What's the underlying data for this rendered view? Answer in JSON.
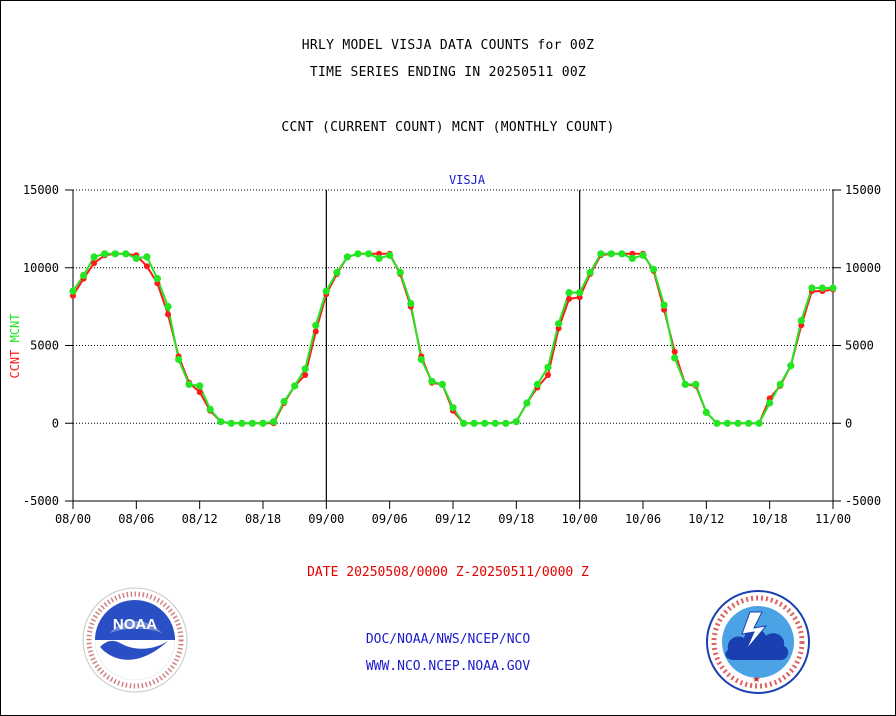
{
  "header": {
    "line1": "HRLY MODEL VISJA DATA COUNTS for 00Z",
    "line2": "TIME SERIES ENDING IN 20250511 00Z",
    "line3": "CCNT (CURRENT COUNT) MCNT (MONTHLY COUNT)"
  },
  "colors": {
    "ccnt": "#ff1a1a",
    "mcnt": "#22e622",
    "title_blue": "#1a1acc",
    "date_red": "#e60000"
  },
  "chart_data": {
    "type": "line",
    "title": "VISJA",
    "xlabel": "",
    "ylabel_parts": [
      "CCNT",
      "MCNT"
    ],
    "ylim": [
      -5000,
      15000
    ],
    "yticks": [
      -5000,
      0,
      5000,
      10000,
      15000
    ],
    "ytick_labels": [
      "-5000",
      "0",
      "5000",
      "10000",
      "15000"
    ],
    "xlim": [
      0,
      72
    ],
    "xticks": [
      0,
      6,
      12,
      18,
      24,
      30,
      36,
      42,
      48,
      54,
      60,
      66,
      72
    ],
    "xtick_labels": [
      "08/00",
      "08/06",
      "08/12",
      "08/18",
      "09/00",
      "09/06",
      "09/12",
      "09/18",
      "10/00",
      "10/06",
      "10/12",
      "10/18",
      "11/00"
    ],
    "day_dividers": [
      24,
      48
    ],
    "grid": "horizontal-dotted",
    "series": [
      {
        "name": "CCNT",
        "color": "#ff1a1a",
        "x": [
          0,
          1,
          2,
          3,
          4,
          5,
          6,
          7,
          8,
          9,
          10,
          11,
          12,
          13,
          14,
          15,
          16,
          17,
          18,
          19,
          20,
          21,
          22,
          23,
          24,
          25,
          26,
          27,
          28,
          29,
          30,
          31,
          32,
          33,
          34,
          35,
          36,
          37,
          38,
          39,
          40,
          41,
          42,
          43,
          44,
          45,
          46,
          47,
          48,
          49,
          50,
          51,
          52,
          53,
          54,
          55,
          56,
          57,
          58,
          59,
          60,
          61,
          62,
          63,
          64,
          65,
          66,
          67,
          68,
          69,
          70,
          71,
          72
        ],
        "values": [
          8200,
          9300,
          10300,
          10800,
          10900,
          10900,
          10800,
          10100,
          9000,
          7000,
          4300,
          2600,
          2000,
          800,
          100,
          0,
          0,
          0,
          0,
          0,
          1300,
          2400,
          3100,
          5900,
          8300,
          9600,
          10700,
          10900,
          10900,
          10900,
          10900,
          9600,
          7500,
          4300,
          2600,
          2500,
          800,
          0,
          0,
          0,
          0,
          0,
          100,
          1300,
          2300,
          3100,
          6100,
          8000,
          8100,
          9600,
          10800,
          10900,
          10900,
          10900,
          10900,
          9800,
          7300,
          4600,
          2500,
          2400,
          700,
          0,
          0,
          0,
          0,
          0,
          1600,
          2400,
          3700,
          6300,
          8500,
          8500,
          8600
        ]
      },
      {
        "name": "MCNT",
        "color": "#22e622",
        "x": [
          0,
          1,
          2,
          3,
          4,
          5,
          6,
          7,
          8,
          9,
          10,
          11,
          12,
          13,
          14,
          15,
          16,
          17,
          18,
          19,
          20,
          21,
          22,
          23,
          24,
          25,
          26,
          27,
          28,
          29,
          30,
          31,
          32,
          33,
          34,
          35,
          36,
          37,
          38,
          39,
          40,
          41,
          42,
          43,
          44,
          45,
          46,
          47,
          48,
          49,
          50,
          51,
          52,
          53,
          54,
          55,
          56,
          57,
          58,
          59,
          60,
          61,
          62,
          63,
          64,
          65,
          66,
          67,
          68,
          69,
          70,
          71,
          72
        ],
        "values": [
          8500,
          9500,
          10700,
          10900,
          10900,
          10900,
          10600,
          10700,
          9300,
          7500,
          4100,
          2500,
          2400,
          900,
          100,
          0,
          0,
          0,
          0,
          100,
          1400,
          2400,
          3500,
          6300,
          8500,
          9700,
          10700,
          10900,
          10900,
          10600,
          10800,
          9700,
          7700,
          4100,
          2700,
          2500,
          1000,
          0,
          0,
          0,
          0,
          0,
          100,
          1300,
          2500,
          3600,
          6400,
          8400,
          8400,
          9700,
          10900,
          10900,
          10900,
          10600,
          10800,
          9900,
          7600,
          4200,
          2500,
          2500,
          700,
          0,
          0,
          0,
          0,
          0,
          1300,
          2500,
          3700,
          6600,
          8700,
          8700,
          8700
        ]
      }
    ]
  },
  "footer": {
    "date_range": "DATE 20250508/0000 Z-20250511/0000 Z",
    "org_path": "DOC/NOAA/NWS/NCEP/NCO",
    "website": "WWW.NCO.NCEP.NOAA.GOV"
  },
  "logos": {
    "left": {
      "icon": "noaa-logo",
      "text": "NOAA"
    },
    "right": {
      "icon": "nws-logo"
    }
  }
}
